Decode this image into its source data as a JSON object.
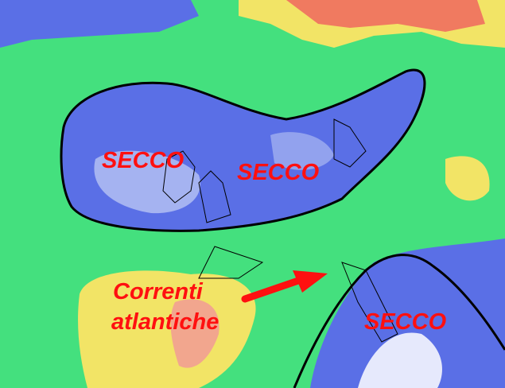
{
  "labels": {
    "secco_1": "SECCO",
    "secco_2": "SECCO",
    "secco_3": "SECCO",
    "correnti_line1": "Correnti",
    "correnti_line2": "atlantiche"
  },
  "colors": {
    "background_green": "#44e07e",
    "dry_blue": "#5a6fe6",
    "very_dry_lightblue": "#b8c4f4",
    "moist_yellow": "#f2e466",
    "humid_salmon": "#f2a68e",
    "humid_red": "#f07a60",
    "label_red": "#ff1010",
    "contour_black": "#000000"
  },
  "arrow": {
    "color": "#ff1010",
    "direction": "northeast"
  }
}
